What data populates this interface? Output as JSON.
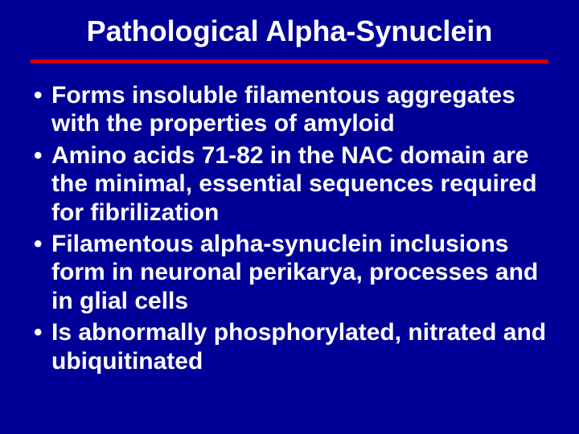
{
  "slide": {
    "title": "Pathological Alpha-Synuclein",
    "background_color": "#000099",
    "title_color": "#ffffff",
    "title_fontsize": 36,
    "divider_color": "#cc0000",
    "divider_height": 5,
    "text_color": "#ffffff",
    "body_fontsize": 30,
    "bullets": [
      "Forms insoluble filamentous aggregates with the properties of amyloid",
      "Amino acids 71-82 in the NAC domain are the minimal, essential sequences required for fibrilization",
      "Filamentous alpha-synuclein inclusions form in neuronal perikarya, processes and in glial cells",
      "Is abnormally phosphorylated, nitrated and ubiquitinated"
    ]
  }
}
